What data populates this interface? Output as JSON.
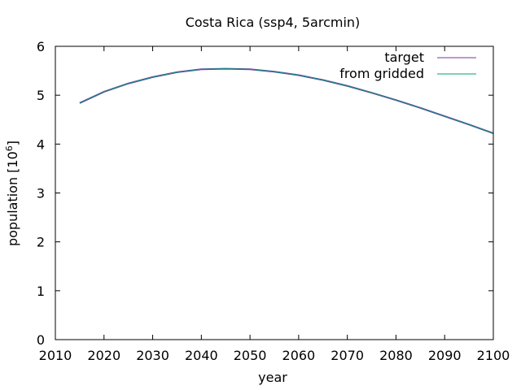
{
  "chart_data": {
    "type": "line",
    "title": "Costa Rica (ssp4, 5arcmin)",
    "xlabel": "year",
    "ylabel_main": "population [10",
    "ylabel_exp": "6",
    "ylabel_close": "]",
    "xlim": [
      2010,
      2100
    ],
    "ylim": [
      0,
      6
    ],
    "xticks": [
      2010,
      2020,
      2030,
      2040,
      2050,
      2060,
      2070,
      2080,
      2090,
      2100
    ],
    "yticks": [
      0,
      1,
      2,
      3,
      4,
      5,
      6
    ],
    "grid": false,
    "legend_position": "top-right",
    "x": [
      2015,
      2020,
      2025,
      2030,
      2035,
      2040,
      2045,
      2050,
      2055,
      2060,
      2065,
      2070,
      2075,
      2080,
      2085,
      2090,
      2095,
      2100
    ],
    "series": [
      {
        "name": "target",
        "color": "#7b2fa8",
        "values": [
          4.84,
          5.07,
          5.24,
          5.37,
          5.47,
          5.53,
          5.54,
          5.53,
          5.48,
          5.41,
          5.31,
          5.19,
          5.05,
          4.9,
          4.74,
          4.57,
          4.4,
          4.22
        ]
      },
      {
        "name": "from gridded",
        "color": "#009e73",
        "values": [
          4.84,
          5.07,
          5.24,
          5.37,
          5.47,
          5.53,
          5.54,
          5.53,
          5.48,
          5.41,
          5.31,
          5.19,
          5.05,
          4.9,
          4.74,
          4.57,
          4.4,
          4.22
        ]
      }
    ]
  }
}
